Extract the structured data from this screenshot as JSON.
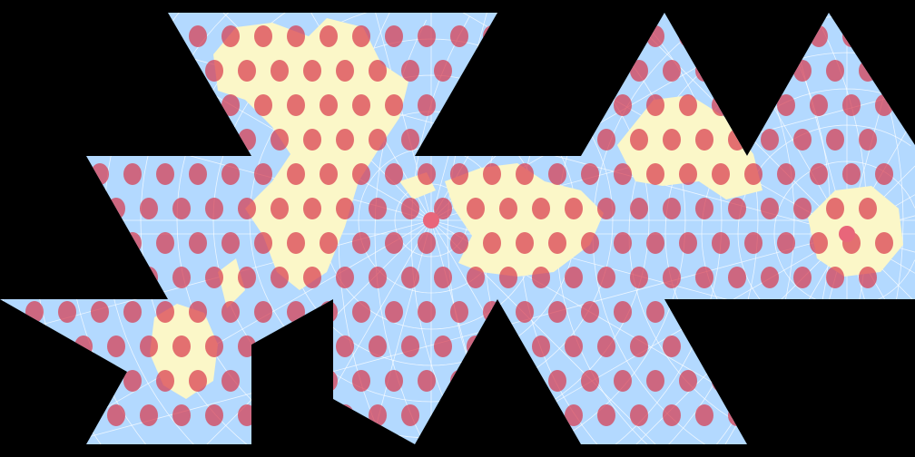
{
  "map": {
    "projection": "dymaxion-icosahedral-net",
    "overlay": "tissot-indicatrix",
    "colors": {
      "background": "#000000",
      "ocean": "#b3d9ff",
      "land": "#fbf7c8",
      "graticule": "#ffffff",
      "indicatrix": "#d9364a"
    }
  }
}
